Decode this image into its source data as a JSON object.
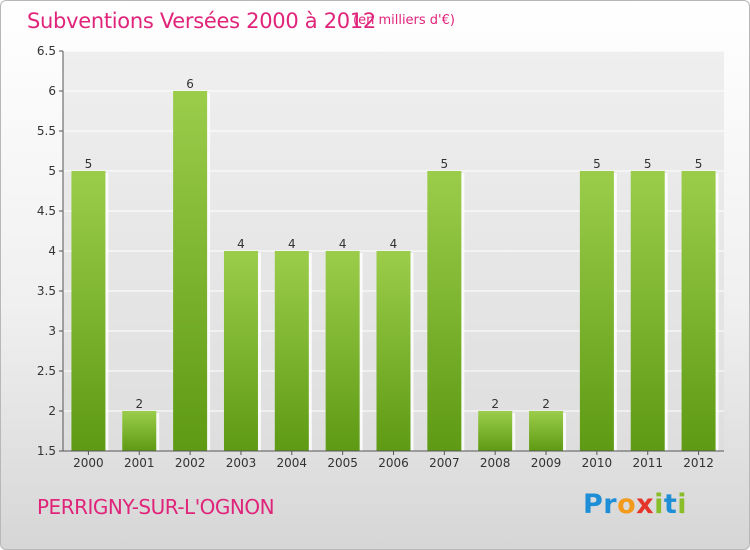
{
  "title": "Subventions Versées 2000 à 2012",
  "subtitle": "(en milliers d'€)",
  "commune": "PERRIGNY-SUR-L'OGNON",
  "logo": {
    "p1": "Pr",
    "p2": "o",
    "p3": "x",
    "p4": "i",
    "p5": "t",
    "p6": "i"
  },
  "colors": {
    "accent": "#e0247a",
    "bar_top": "#9bcd4b",
    "bar_bottom": "#5e9a14"
  },
  "chart_data": {
    "type": "bar",
    "categories": [
      "2000",
      "2001",
      "2002",
      "2003",
      "2004",
      "2005",
      "2006",
      "2007",
      "2008",
      "2009",
      "2010",
      "2011",
      "2012"
    ],
    "values": [
      5,
      2,
      6,
      4,
      4,
      4,
      4,
      5,
      2,
      2,
      5,
      5,
      5
    ],
    "ylim": [
      1.5,
      6.5
    ],
    "yticks": [
      "1.5",
      "2",
      "2.5",
      "3",
      "3.5",
      "4",
      "4.5",
      "5",
      "5.5",
      "6",
      "6.5"
    ],
    "grid": true
  }
}
